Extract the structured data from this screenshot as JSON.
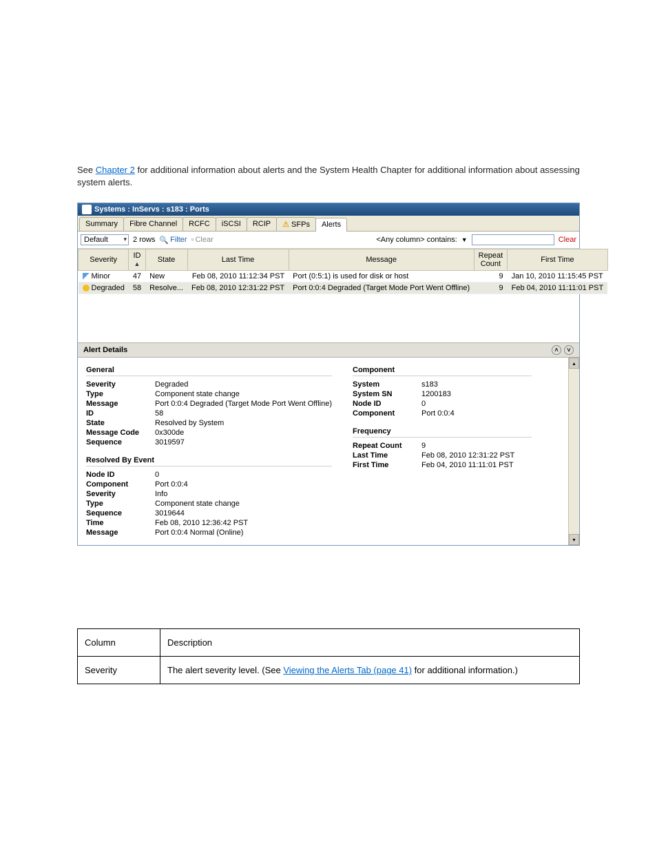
{
  "intro": {
    "line1_prefix": "See ",
    "line1_link": "Chapter 2",
    "line1_suffix": " for additional information about alerts and the System Health Chapter for additional information about assessing system alerts."
  },
  "window": {
    "title": "Systems : InServs : s183 : Ports",
    "tabs": [
      "Summary",
      "Fibre Channel",
      "RCFC",
      "iSCSI",
      "RCIP",
      "SFPs",
      "Alerts"
    ],
    "sfps_warn": true,
    "active_tab": 6,
    "view_dropdown": "Default",
    "row_count_label": "2 rows",
    "filter_label": "Filter",
    "clear_label_small": "Clear",
    "filter_scope": "<Any column> contains:",
    "clear_link": "Clear",
    "columns": [
      "Severity",
      "ID",
      "State",
      "Last Time",
      "Message",
      "Repeat Count",
      "First Time"
    ],
    "sort_col_index": 1,
    "rows": [
      {
        "sev": "Minor",
        "sev_class": "sev-minor",
        "id": "47",
        "state": "New",
        "last": "Feb 08, 2010 11:12:34 PST",
        "msg": "Port (0:5:1) is used for disk or host",
        "repeat": "9",
        "first": "Jan 10, 2010 11:15:45 PST",
        "selected": false
      },
      {
        "sev": "Degraded",
        "sev_class": "sev-deg",
        "id": "58",
        "state": "Resolve...",
        "last": "Feb 08, 2010 12:31:22 PST",
        "msg": "Port 0:0:4 Degraded (Target Mode Port Went Offline)",
        "repeat": "9",
        "first": "Feb 04, 2010 11:11:01 PST",
        "selected": true
      }
    ],
    "details_header": "Alert Details"
  },
  "details": {
    "general": {
      "title": "General",
      "severity": "Degraded",
      "type": "Component state change",
      "message": "Port 0:0:4 Degraded (Target Mode Port Went Offline)",
      "id": "58",
      "state": "Resolved by System",
      "message_code": "0x300de",
      "sequence": "3019597"
    },
    "resolved": {
      "title": "Resolved By Event",
      "node_id": "0",
      "component": "Port 0:0:4",
      "severity": "Info",
      "type": "Component state change",
      "sequence": "3019644",
      "time": "Feb 08, 2010 12:36:42 PST",
      "message": "Port 0:0:4 Normal (Online)"
    },
    "component": {
      "title": "Component",
      "system": "s183",
      "system_sn": "1200183",
      "node_id": "0",
      "component": "Port 0:0:4"
    },
    "frequency": {
      "title": "Frequency",
      "repeat_count": "9",
      "last_time": "Feb 08, 2010 12:31:22 PST",
      "first_time": "Feb 04, 2010 11:11:01 PST"
    },
    "labels": {
      "severity": "Severity",
      "type": "Type",
      "message": "Message",
      "id": "ID",
      "state": "State",
      "message_code": "Message Code",
      "sequence": "Sequence",
      "node_id": "Node ID",
      "component": "Component",
      "time": "Time",
      "system": "System",
      "system_sn": "System SN",
      "repeat_count": "Repeat Count",
      "last_time": "Last Time",
      "first_time": "First Time"
    }
  },
  "desc_table": {
    "col_header": "Column",
    "desc_header": "Description",
    "row_col": "Severity",
    "row_desc_prefix": "The alert severity level. (See ",
    "row_desc_link": "Viewing the Alerts Tab (page 41)",
    "row_desc_suffix": " for additional information.)"
  }
}
